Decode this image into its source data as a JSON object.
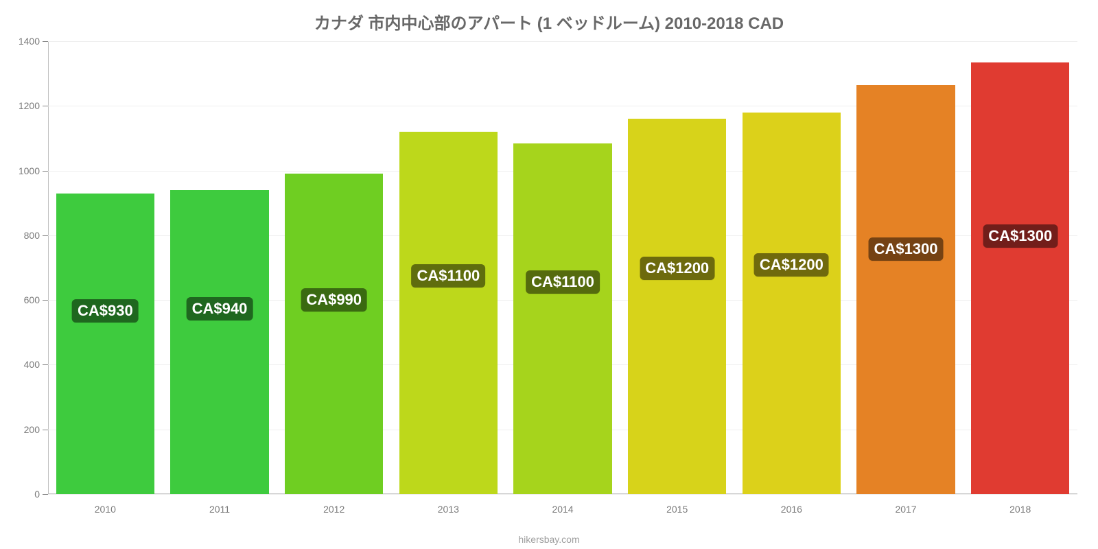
{
  "chart": {
    "type": "bar",
    "title": "カナダ 市内中心部のアパート (1 ベッドルーム) 2010-2018 CAD",
    "title_fontsize": 24,
    "title_color": "#686868",
    "background_color": "#ffffff",
    "grid_color": "#efefef",
    "axis_line_color": "#bfbfbf",
    "tick_label_color": "#7a7a7a",
    "tick_label_fontsize": 14,
    "ylim": [
      0,
      1400
    ],
    "ytick_step": 200,
    "yticks": [
      "0",
      "200",
      "400",
      "600",
      "800",
      "1000",
      "1200",
      "1400"
    ],
    "categories": [
      "2010",
      "2011",
      "2012",
      "2013",
      "2014",
      "2015",
      "2016",
      "2017",
      "2018"
    ],
    "values": [
      930,
      940,
      990,
      1120,
      1085,
      1160,
      1180,
      1265,
      1335
    ],
    "bar_labels": [
      "CA$930",
      "CA$940",
      "CA$990",
      "CA$1100",
      "CA$1100",
      "CA$1200",
      "CA$1200",
      "CA$1300",
      "CA$1300"
    ],
    "bar_colors": [
      "#3ecb3e",
      "#3ecb3e",
      "#6fce22",
      "#bdd81b",
      "#a6d41c",
      "#d7d31a",
      "#dcd11a",
      "#e58225",
      "#e03b31"
    ],
    "label_bg_colors": [
      "#1f671f",
      "#1f671f",
      "#3a6a11",
      "#5f6d0e",
      "#556b0e",
      "#6d6a0d",
      "#70690d",
      "#754213",
      "#721e1a"
    ],
    "bar_width_pct": 86,
    "value_label_fontsize": 22,
    "value_label_fontweight": 600,
    "attribution": "hikersbay.com",
    "attribution_color": "#9e9e9e",
    "attribution_fontsize": 14
  }
}
